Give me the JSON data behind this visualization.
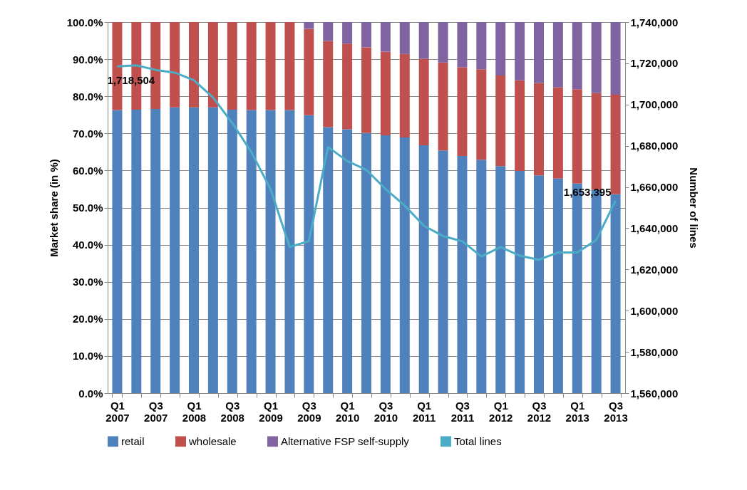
{
  "chart_data": {
    "type": "bar",
    "stacked": true,
    "ylabel": "Market share (in %)",
    "y2label": "Number of lines",
    "categories": [
      "Q1 2007",
      null,
      "Q3 2007",
      null,
      "Q1 2008",
      null,
      "Q3 2008",
      null,
      "Q1 2009",
      null,
      "Q3 2009",
      null,
      "Q1 2010",
      null,
      "Q3 2010",
      null,
      "Q1 2011",
      null,
      "Q3 2011",
      null,
      "Q1 2012",
      null,
      "Q3 2012",
      null,
      "Q1 2013",
      null,
      "Q3 2013"
    ],
    "series": [
      {
        "name": "retail",
        "color": "#4f81bd",
        "values": [
          76.3,
          76.4,
          76.6,
          77.0,
          77.0,
          77.0,
          76.4,
          76.3,
          76.3,
          76.3,
          74.9,
          71.7,
          71.1,
          70.1,
          69.5,
          68.9,
          66.8,
          65.4,
          63.9,
          62.9,
          61.2,
          59.9,
          58.7,
          57.8,
          56.5,
          54.8,
          53.6
        ]
      },
      {
        "name": "wholesale",
        "color": "#c0504d",
        "values": [
          23.7,
          23.6,
          23.4,
          23.0,
          23.0,
          23.0,
          23.6,
          23.7,
          23.7,
          23.7,
          23.3,
          23.2,
          23.1,
          23.1,
          22.5,
          22.5,
          23.3,
          23.7,
          23.9,
          24.4,
          24.4,
          24.4,
          24.9,
          24.6,
          25.4,
          26.1,
          26.8
        ]
      },
      {
        "name": "Alternative FSP self-supply",
        "color": "#8064a2",
        "values": [
          0,
          0,
          0,
          0,
          0,
          0,
          0,
          0,
          0,
          0,
          1.8,
          5.1,
          5.8,
          6.8,
          8.0,
          8.6,
          9.9,
          10.9,
          12.2,
          12.7,
          14.4,
          15.7,
          16.4,
          17.6,
          18.1,
          19.1,
          19.6
        ]
      },
      {
        "name": "Total lines",
        "type": "line",
        "axis": "y2",
        "color": "#4bacc6",
        "values": [
          1718504,
          1719000,
          1716800,
          1715500,
          1711800,
          1703400,
          1691100,
          1676900,
          1659000,
          1630900,
          1633700,
          1679400,
          1672600,
          1668300,
          1659000,
          1651000,
          1641200,
          1636200,
          1633700,
          1626300,
          1630900,
          1626700,
          1624700,
          1628200,
          1628200,
          1634300,
          1653395
        ],
        "value_labels": [
          "1,718,504",
          null,
          null,
          null,
          null,
          null,
          null,
          null,
          null,
          null,
          null,
          null,
          null,
          null,
          null,
          null,
          null,
          null,
          null,
          null,
          null,
          null,
          null,
          null,
          null,
          null,
          "1,653,395"
        ]
      }
    ],
    "ylim": [
      0,
      100
    ],
    "yticks": [
      {
        "value": 0,
        "label": "0.0%"
      },
      {
        "value": 10,
        "label": "10.0%"
      },
      {
        "value": 20,
        "label": "20.0%"
      },
      {
        "value": 30,
        "label": "30.0%"
      },
      {
        "value": 40,
        "label": "40.0%"
      },
      {
        "value": 50,
        "label": "50.0%"
      },
      {
        "value": 60,
        "label": "60.0%"
      },
      {
        "value": 70,
        "label": "70.0%"
      },
      {
        "value": 80,
        "label": "80.0%"
      },
      {
        "value": 90,
        "label": "90.0%"
      },
      {
        "value": 100,
        "label": "100.0%"
      }
    ],
    "y2lim": [
      1560000,
      1740000
    ],
    "y2ticks": [
      {
        "value": 1560000,
        "label": "1,560,000"
      },
      {
        "value": 1580000,
        "label": "1,580,000"
      },
      {
        "value": 1600000,
        "label": "1,600,000"
      },
      {
        "value": 1620000,
        "label": "1,620,000"
      },
      {
        "value": 1640000,
        "label": "1,640,000"
      },
      {
        "value": 1660000,
        "label": "1,660,000"
      },
      {
        "value": 1680000,
        "label": "1,680,000"
      },
      {
        "value": 1700000,
        "label": "1,700,000"
      },
      {
        "value": 1720000,
        "label": "1,720,000"
      },
      {
        "value": 1740000,
        "label": "1,740,000"
      }
    ],
    "grid": "y",
    "legend": "bottom"
  }
}
